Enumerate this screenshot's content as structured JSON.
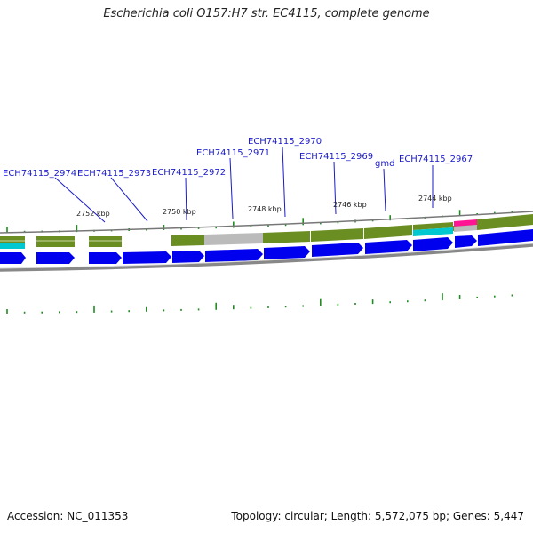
{
  "title": "Escherichia coli O157:H7 str. EC4115, complete genome",
  "gene_labels": [
    {
      "text": "ECH74115_2974"
    },
    {
      "text": "ECH74115_2973"
    },
    {
      "text": "ECH74115_2972"
    },
    {
      "text": "ECH74115_2971"
    },
    {
      "text": "ECH74115_2970"
    },
    {
      "text": "ECH74115_2969"
    },
    {
      "text": "gmd"
    },
    {
      "text": "ECH74115_2967"
    }
  ],
  "kbp_labels": [
    {
      "text": "2752 kbp"
    },
    {
      "text": "2750 kbp"
    },
    {
      "text": "2748 kbp"
    },
    {
      "text": "2746 kbp"
    },
    {
      "text": "2744 kbp"
    }
  ],
  "colors": {
    "gene_arrow": "#0000ee",
    "olive_track": "#6b8e23",
    "grey_region": "#bbbbbb",
    "cyan_feature": "#00c8d0",
    "magenta_feature": "#ff1493",
    "tick_green": "#228b22",
    "label_blue": "#1a1acc"
  },
  "footer": {
    "accession": "Accession: NC_011353",
    "summary": "Topology: circular; Length: 5,572,075 bp; Genes: 5,447"
  }
}
